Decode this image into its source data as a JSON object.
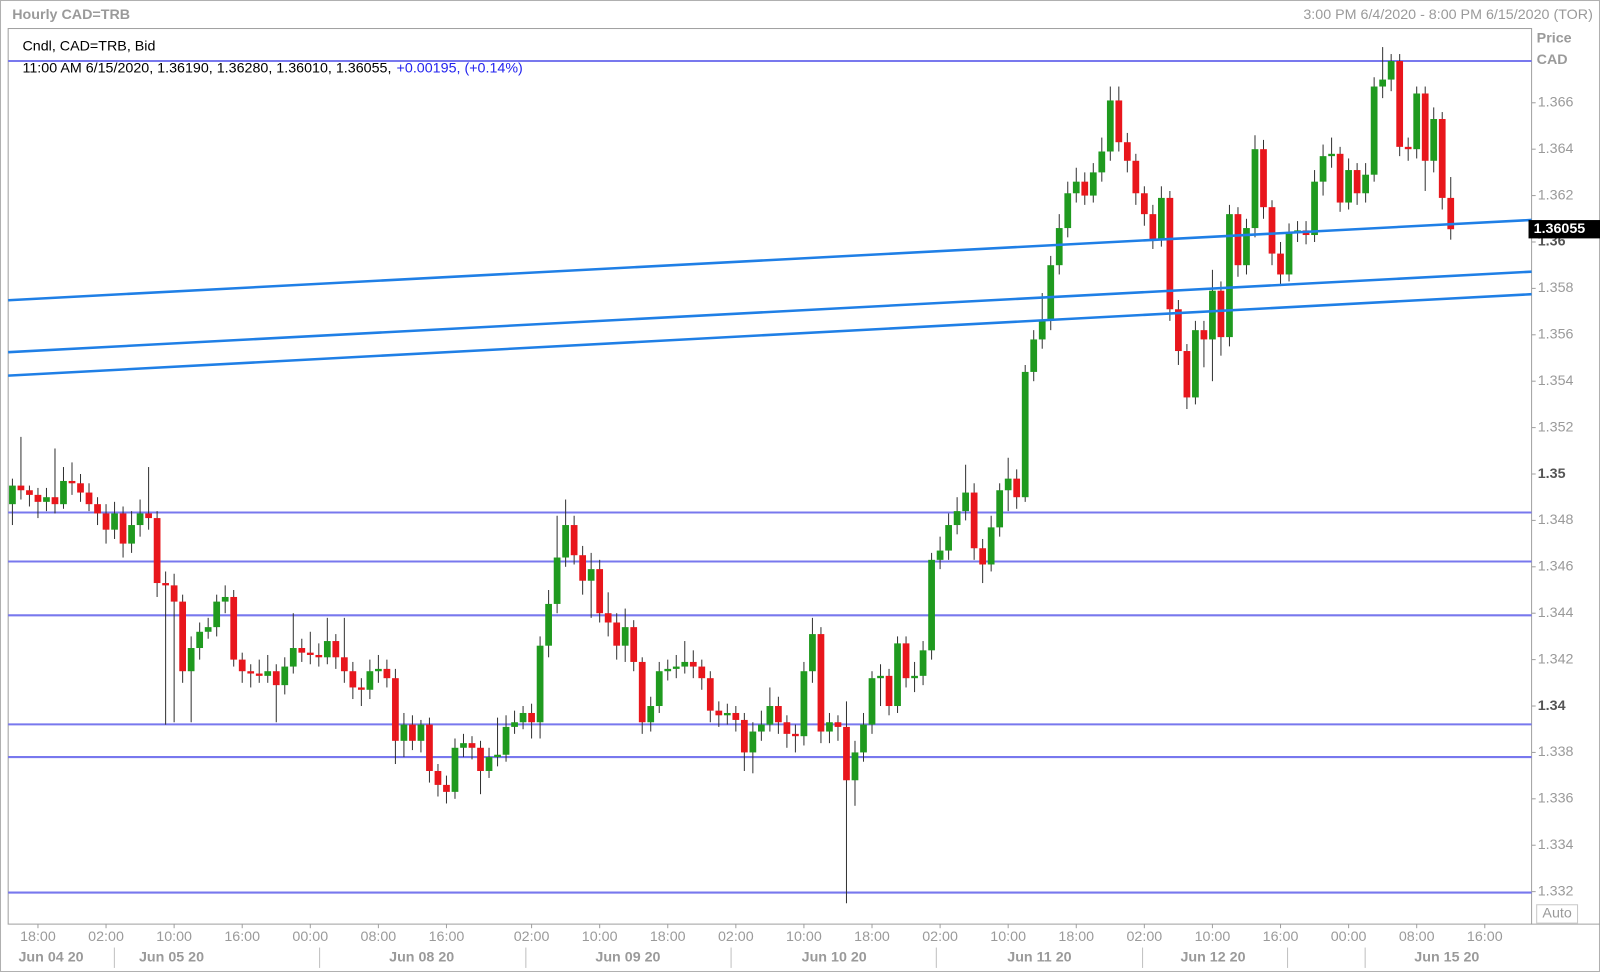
{
  "header": {
    "title": "Hourly CAD=TRB",
    "range": "3:00 PM 6/4/2020 - 8:00 PM 6/15/2020 (TOR)"
  },
  "legend": {
    "series": "Cndl, CAD=TRB, Bid",
    "info": "11:00 AM 6/15/2020, 1.36190, 1.36280, 1.36010, 1.36055,",
    "change": "+0.00195, (+0.14%)"
  },
  "chart_data": {
    "type": "candlestick",
    "up_color": "#1f9a1f",
    "down_color": "#e8161c",
    "y_axis_label": "Price",
    "y_axis_unit": "CAD",
    "auto_button": "Auto",
    "last_price": 1.36055,
    "xlim": [
      -0.5,
      178.5
    ],
    "ylim": [
      1.3306,
      1.3692
    ],
    "yticks": [
      1.332,
      1.334,
      1.336,
      1.338,
      1.34,
      1.342,
      1.344,
      1.346,
      1.348,
      1.35,
      1.352,
      1.354,
      1.356,
      1.358,
      1.36,
      1.362,
      1.364,
      1.366
    ],
    "xticks": [
      {
        "value": 3,
        "label": "18:00"
      },
      {
        "value": 11,
        "label": "02:00"
      },
      {
        "value": 19,
        "label": "10:00"
      },
      {
        "value": 27,
        "label": "16:00"
      },
      {
        "value": 35,
        "label": "00:00"
      },
      {
        "value": 43,
        "label": "08:00"
      },
      {
        "value": 51,
        "label": "16:00"
      },
      {
        "value": 61,
        "label": "02:00"
      },
      {
        "value": 69,
        "label": "10:00"
      },
      {
        "value": 77,
        "label": "18:00"
      },
      {
        "value": 85,
        "label": "02:00"
      },
      {
        "value": 93,
        "label": "10:00"
      },
      {
        "value": 101,
        "label": "18:00"
      },
      {
        "value": 109,
        "label": "02:00"
      },
      {
        "value": 117,
        "label": "10:00"
      },
      {
        "value": 125,
        "label": "18:00"
      },
      {
        "value": 133,
        "label": "02:00"
      },
      {
        "value": 141,
        "label": "10:00"
      },
      {
        "value": 149,
        "label": "16:00"
      },
      {
        "value": 157,
        "label": "00:00"
      },
      {
        "value": 165,
        "label": "08:00"
      },
      {
        "value": 173,
        "label": "16:00"
      }
    ],
    "date_labels": [
      "Jun 04 20",
      "Jun 05 20",
      "Jun 08 20",
      "Jun 09 20",
      "Jun 10 20",
      "Jun 11 20",
      "Jun 12 20",
      "Jun 15 20"
    ],
    "hlines": {
      "color": "#7878ee",
      "values": [
        1.3678,
        1.34834,
        1.34623,
        1.34391,
        1.33921,
        1.3378,
        1.33196
      ]
    },
    "trendlines": {
      "color": "#1f7fe6",
      "lines": [
        {
          "x": [
            -0.5,
            178.5
          ],
          "y": [
            1.35749,
            1.36095
          ]
        },
        {
          "x": [
            -0.5,
            178.5
          ],
          "y": [
            1.35525,
            1.35872
          ]
        },
        {
          "x": [
            -0.5,
            178.5
          ],
          "y": [
            1.35424,
            1.35775
          ]
        }
      ]
    },
    "open": [
      1.3487,
      1.3495,
      1.3493,
      1.3491,
      1.3488,
      1.349,
      1.3487,
      1.3497,
      1.3496,
      1.3492,
      1.3487,
      1.3483,
      1.3476,
      1.3483,
      1.347,
      1.3478,
      1.3483,
      1.3481,
      1.3453,
      1.3452,
      1.3445,
      1.3415,
      1.3425,
      1.3432,
      1.3434,
      1.3445,
      1.3447,
      1.342,
      1.3415,
      1.3414,
      1.3413,
      1.3415,
      1.3409,
      1.3417,
      1.3425,
      1.3423,
      1.3422,
      1.3421,
      1.3428,
      1.3421,
      1.3415,
      1.3408,
      1.3407,
      1.3415,
      1.3416,
      1.3412,
      1.3385,
      1.3392,
      1.3385,
      1.3392,
      1.3372,
      1.3366,
      1.3363,
      1.3382,
      1.3384,
      1.3382,
      1.3372,
      1.3378,
      1.3379,
      1.3391,
      1.3393,
      1.3397,
      1.3393,
      1.3426,
      1.3444,
      1.3464,
      1.3478,
      1.3465,
      1.3454,
      1.3459,
      1.344,
      1.3436,
      1.3426,
      1.3434,
      1.3419,
      1.3393,
      1.34,
      1.3415,
      1.3416,
      1.3417,
      1.3419,
      1.3417,
      1.3412,
      1.3398,
      1.3396,
      1.3397,
      1.3394,
      1.338,
      1.3389,
      1.3392,
      1.34,
      1.3393,
      1.3388,
      1.3387,
      1.3415,
      1.3431,
      1.3389,
      1.3393,
      1.3391,
      1.3368,
      1.338,
      1.3392,
      1.3412,
      1.3413,
      1.34,
      1.3427,
      1.3412,
      1.3413,
      1.3424,
      1.3463,
      1.3467,
      1.3478,
      1.3484,
      1.3492,
      1.3468,
      1.3461,
      1.3477,
      1.3493,
      1.3498,
      1.349,
      1.3544,
      1.3558,
      1.3566,
      1.359,
      1.3606,
      1.3621,
      1.3626,
      1.362,
      1.363,
      1.3639,
      1.3661,
      1.3643,
      1.3635,
      1.3621,
      1.3612,
      1.3601,
      1.3619,
      1.3571,
      1.3553,
      1.3533,
      1.3562,
      1.3558,
      1.3579,
      1.3559,
      1.3612,
      1.359,
      1.3606,
      1.364,
      1.3615,
      1.3595,
      1.3586,
      1.3604,
      1.3605,
      1.3603,
      1.3626,
      1.3637,
      1.3638,
      1.3617,
      1.3631,
      1.3621,
      1.3629,
      1.3667,
      1.367,
      1.3678,
      1.3641,
      1.364,
      1.3664,
      1.3635,
      1.3653,
      1.3619
    ],
    "high": [
      1.3498,
      1.3516,
      1.3495,
      1.3494,
      1.3494,
      1.3511,
      1.3503,
      1.3505,
      1.35,
      1.3496,
      1.349,
      1.3487,
      1.3488,
      1.3486,
      1.3484,
      1.3489,
      1.3503,
      1.3484,
      1.3458,
      1.3457,
      1.3448,
      1.343,
      1.3436,
      1.3438,
      1.3448,
      1.3452,
      1.345,
      1.3423,
      1.3418,
      1.342,
      1.3422,
      1.3418,
      1.3421,
      1.344,
      1.3429,
      1.3432,
      1.3427,
      1.3438,
      1.3431,
      1.3438,
      1.3419,
      1.3412,
      1.342,
      1.3422,
      1.342,
      1.3416,
      1.3397,
      1.3396,
      1.3394,
      1.3395,
      1.3375,
      1.337,
      1.3386,
      1.3388,
      1.3387,
      1.3385,
      1.3382,
      1.3395,
      1.3396,
      1.3398,
      1.34,
      1.3401,
      1.343,
      1.345,
      1.3482,
      1.3489,
      1.3482,
      1.3469,
      1.3466,
      1.3463,
      1.3449,
      1.344,
      1.3442,
      1.3437,
      1.3421,
      1.3404,
      1.3419,
      1.342,
      1.3422,
      1.3428,
      1.3424,
      1.342,
      1.3415,
      1.3402,
      1.3401,
      1.34,
      1.3397,
      1.3393,
      1.3398,
      1.3408,
      1.3404,
      1.3396,
      1.3392,
      1.3419,
      1.3438,
      1.3434,
      1.3397,
      1.3396,
      1.3402,
      1.3385,
      1.3397,
      1.3415,
      1.3418,
      1.3416,
      1.343,
      1.343,
      1.3419,
      1.3428,
      1.3466,
      1.3473,
      1.3483,
      1.349,
      1.3504,
      1.3496,
      1.3472,
      1.3482,
      1.3496,
      1.3507,
      1.3502,
      1.3547,
      1.3562,
      1.3578,
      1.3594,
      1.3612,
      1.3626,
      1.3632,
      1.363,
      1.3634,
      1.3645,
      1.3667,
      1.3667,
      1.3647,
      1.3638,
      1.3624,
      1.3616,
      1.3624,
      1.3622,
      1.3575,
      1.3556,
      1.3566,
      1.3566,
      1.3588,
      1.3583,
      1.3616,
      1.3615,
      1.361,
      1.3646,
      1.3644,
      1.3618,
      1.36,
      1.3608,
      1.3609,
      1.3609,
      1.3631,
      1.3642,
      1.3645,
      1.3641,
      1.3636,
      1.3634,
      1.3634,
      1.3671,
      1.3684,
      1.3681,
      1.3681,
      1.3645,
      1.3667,
      1.3667,
      1.3658,
      1.3656,
      1.3628
    ],
    "low": [
      1.3478,
      1.3489,
      1.3486,
      1.3481,
      1.3484,
      1.3483,
      1.3485,
      1.3491,
      1.3488,
      1.3484,
      1.3478,
      1.347,
      1.3472,
      1.3464,
      1.3466,
      1.3473,
      1.3476,
      1.3447,
      1.3392,
      1.3393,
      1.341,
      1.3393,
      1.342,
      1.3429,
      1.343,
      1.344,
      1.3417,
      1.341,
      1.3408,
      1.341,
      1.341,
      1.3393,
      1.3405,
      1.3414,
      1.3419,
      1.3418,
      1.3417,
      1.3418,
      1.3416,
      1.341,
      1.3403,
      1.34,
      1.3403,
      1.341,
      1.3408,
      1.3375,
      1.3378,
      1.3381,
      1.338,
      1.3367,
      1.3361,
      1.3358,
      1.336,
      1.3378,
      1.3377,
      1.3362,
      1.3369,
      1.3374,
      1.3376,
      1.3388,
      1.339,
      1.3386,
      1.3386,
      1.3421,
      1.344,
      1.346,
      1.3461,
      1.3448,
      1.3438,
      1.3436,
      1.343,
      1.342,
      1.3419,
      1.3415,
      1.3388,
      1.3389,
      1.3397,
      1.3411,
      1.3412,
      1.3414,
      1.3412,
      1.3407,
      1.3393,
      1.3391,
      1.3392,
      1.3389,
      1.3372,
      1.3371,
      1.3385,
      1.3389,
      1.3388,
      1.3382,
      1.338,
      1.3383,
      1.341,
      1.3384,
      1.3384,
      1.3385,
      1.3315,
      1.3357,
      1.3376,
      1.3388,
      1.34,
      1.3396,
      1.3397,
      1.3408,
      1.3406,
      1.3409,
      1.342,
      1.3459,
      1.3463,
      1.3474,
      1.348,
      1.3463,
      1.3453,
      1.3458,
      1.3473,
      1.3484,
      1.3485,
      1.3488,
      1.354,
      1.3554,
      1.3562,
      1.3586,
      1.3602,
      1.3617,
      1.3616,
      1.3617,
      1.3626,
      1.3635,
      1.3639,
      1.363,
      1.3616,
      1.3607,
      1.3597,
      1.3598,
      1.3566,
      1.3547,
      1.3528,
      1.353,
      1.3546,
      1.354,
      1.3551,
      1.3555,
      1.3585,
      1.3586,
      1.3602,
      1.361,
      1.359,
      1.3581,
      1.3583,
      1.36,
      1.3599,
      1.36,
      1.362,
      1.3632,
      1.3613,
      1.3614,
      1.3616,
      1.3617,
      1.3626,
      1.3662,
      1.3665,
      1.3637,
      1.3635,
      1.3636,
      1.3622,
      1.363,
      1.3614,
      1.3601
    ],
    "close": [
      1.3495,
      1.3493,
      1.3491,
      1.3488,
      1.349,
      1.3487,
      1.3497,
      1.3496,
      1.3492,
      1.3487,
      1.3483,
      1.3476,
      1.3483,
      1.347,
      1.3478,
      1.3483,
      1.3481,
      1.3453,
      1.3452,
      1.3445,
      1.3415,
      1.3425,
      1.3432,
      1.3434,
      1.3445,
      1.3447,
      1.342,
      1.3415,
      1.3414,
      1.3413,
      1.3415,
      1.3409,
      1.3417,
      1.3425,
      1.3423,
      1.3422,
      1.3421,
      1.3428,
      1.3421,
      1.3415,
      1.3408,
      1.3407,
      1.3415,
      1.3416,
      1.3412,
      1.3385,
      1.3392,
      1.3385,
      1.3392,
      1.3372,
      1.3366,
      1.3363,
      1.3382,
      1.3384,
      1.3382,
      1.3372,
      1.3378,
      1.3379,
      1.3391,
      1.3393,
      1.3397,
      1.3393,
      1.3426,
      1.3444,
      1.3464,
      1.3478,
      1.3465,
      1.3454,
      1.3459,
      1.344,
      1.3436,
      1.3426,
      1.3434,
      1.3419,
      1.3393,
      1.34,
      1.3415,
      1.3416,
      1.3417,
      1.3419,
      1.3417,
      1.3412,
      1.3398,
      1.3396,
      1.3397,
      1.3394,
      1.338,
      1.3389,
      1.3392,
      1.34,
      1.3393,
      1.3388,
      1.3387,
      1.3415,
      1.3431,
      1.3389,
      1.3393,
      1.3391,
      1.3368,
      1.338,
      1.3392,
      1.3412,
      1.3413,
      1.34,
      1.3427,
      1.3412,
      1.3413,
      1.3424,
      1.3463,
      1.3467,
      1.3478,
      1.3484,
      1.3492,
      1.3468,
      1.3461,
      1.3477,
      1.3493,
      1.3498,
      1.349,
      1.3544,
      1.3558,
      1.3566,
      1.359,
      1.3606,
      1.3621,
      1.3626,
      1.362,
      1.363,
      1.3639,
      1.3661,
      1.3643,
      1.3635,
      1.3621,
      1.3612,
      1.3601,
      1.3619,
      1.3571,
      1.3553,
      1.3533,
      1.3562,
      1.3558,
      1.3579,
      1.3559,
      1.3612,
      1.359,
      1.3606,
      1.364,
      1.3615,
      1.3595,
      1.3586,
      1.3604,
      1.3605,
      1.3603,
      1.3626,
      1.3637,
      1.3638,
      1.3617,
      1.3631,
      1.3621,
      1.3629,
      1.3667,
      1.367,
      1.3678,
      1.3641,
      1.364,
      1.3664,
      1.3635,
      1.3653,
      1.3619,
      1.36055
    ]
  }
}
